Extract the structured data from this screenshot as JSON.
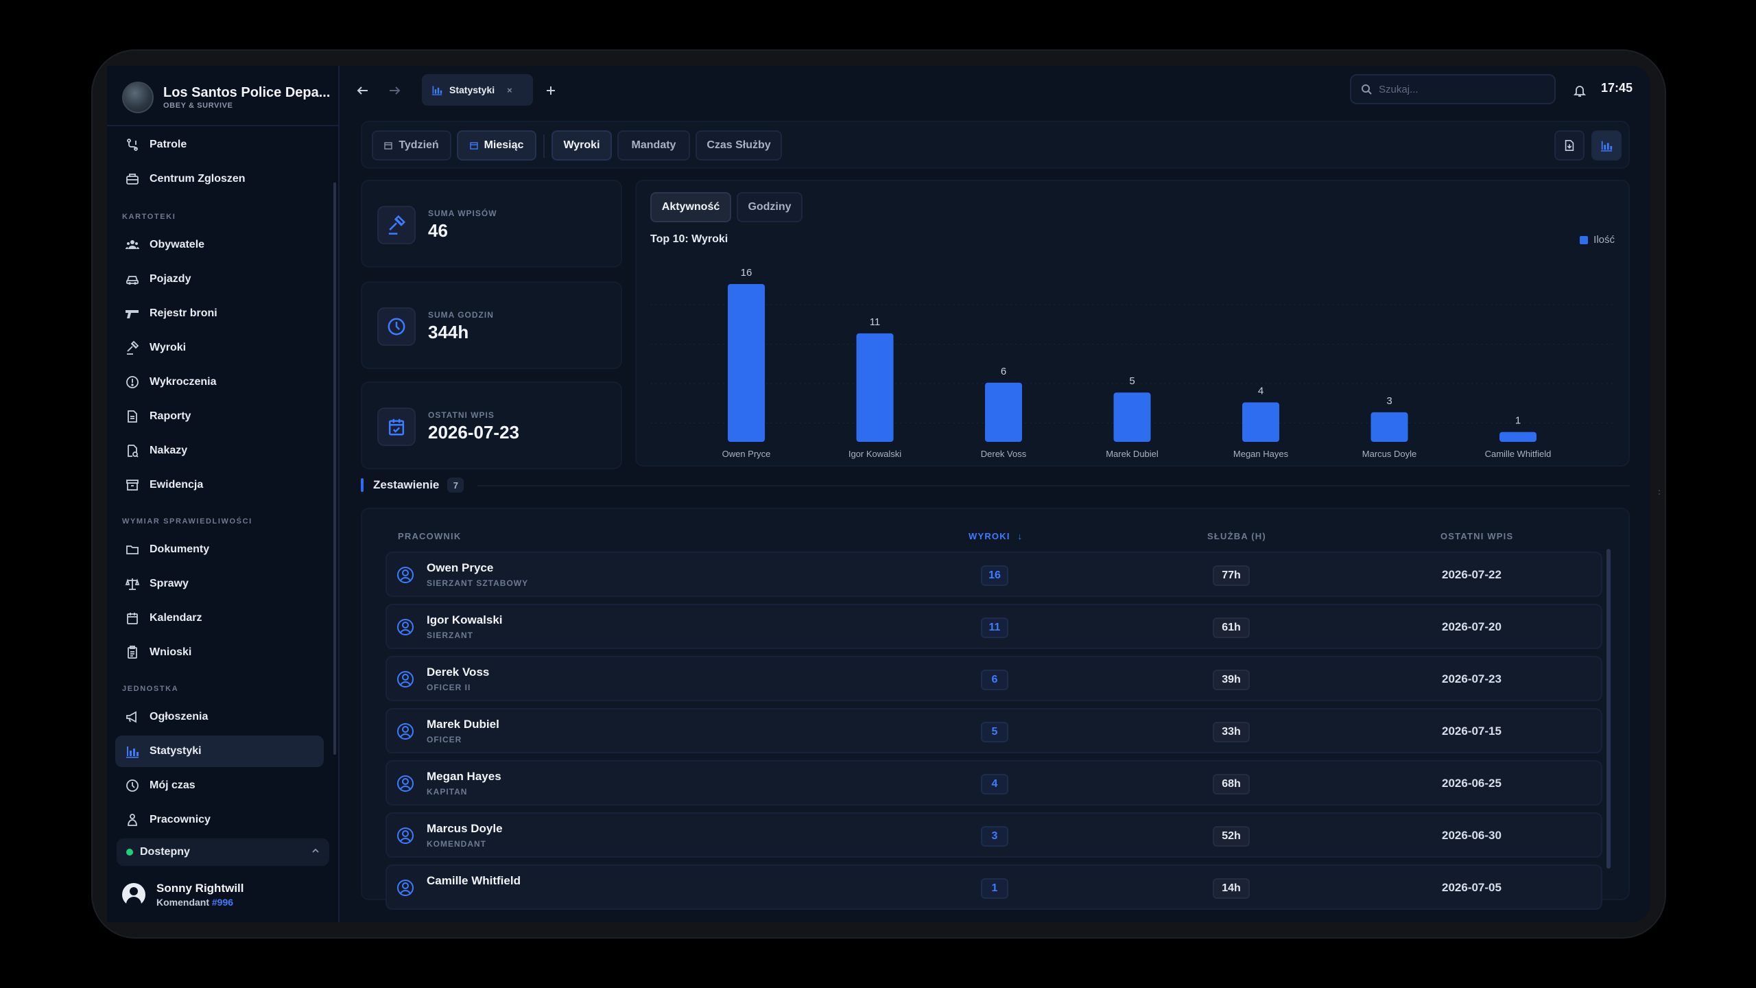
{
  "brand": {
    "title": "Los Santos Police Depa...",
    "subtitle": "OBEY & SURVIVE"
  },
  "sidebar": {
    "top_items": [
      {
        "label": "Patrole",
        "icon": "patrol-icon"
      },
      {
        "label": "Centrum Zgloszen",
        "icon": "dispatch-icon"
      }
    ],
    "sections": [
      {
        "title": "KARTOTEKI",
        "items": [
          {
            "label": "Obywatele",
            "icon": "citizens-icon"
          },
          {
            "label": "Pojazdy",
            "icon": "car-icon"
          },
          {
            "label": "Rejestr broni",
            "icon": "gun-icon"
          },
          {
            "label": "Wyroki",
            "icon": "gavel-icon"
          },
          {
            "label": "Wykroczenia",
            "icon": "alert-circle-icon"
          },
          {
            "label": "Raporty",
            "icon": "report-icon"
          },
          {
            "label": "Nakazy",
            "icon": "warrant-icon"
          },
          {
            "label": "Ewidencja",
            "icon": "archive-icon"
          }
        ]
      },
      {
        "title": "WYMIAR SPRAWIEDLIWOŚCI",
        "items": [
          {
            "label": "Dokumenty",
            "icon": "folder-icon"
          },
          {
            "label": "Sprawy",
            "icon": "scales-icon"
          },
          {
            "label": "Kalendarz",
            "icon": "calendar-icon"
          },
          {
            "label": "Wnioski",
            "icon": "clipboard-icon"
          }
        ]
      },
      {
        "title": "JEDNOSTKA",
        "items": [
          {
            "label": "Ogłoszenia",
            "icon": "megaphone-icon"
          },
          {
            "label": "Statystyki",
            "icon": "bar-chart-icon",
            "active": true
          },
          {
            "label": "Mój czas",
            "icon": "clock-icon"
          },
          {
            "label": "Pracownicy",
            "icon": "person-icon"
          }
        ]
      }
    ],
    "status": {
      "label": "Dostepny",
      "color": "#1fd17a"
    },
    "user": {
      "name": "Sonny Rightwill",
      "role": "Komendant",
      "badge": "#996"
    }
  },
  "topbar": {
    "tab_label": "Statystyki",
    "tab_close": "×",
    "search_placeholder": "Szukaj...",
    "clock": "17:45"
  },
  "filters": {
    "period": [
      {
        "label": "Tydzień",
        "active": false
      },
      {
        "label": "Miesiąc",
        "active": true
      }
    ],
    "category": [
      {
        "label": "Wyroki",
        "active": true
      },
      {
        "label": "Mandaty",
        "active": false
      },
      {
        "label": "Czas Służby",
        "active": false
      }
    ]
  },
  "stats": [
    {
      "label": "SUMA WPISÓW",
      "value": "46",
      "icon": "gavel-icon"
    },
    {
      "label": "SUMA GODZIN",
      "value": "344h",
      "icon": "clock-icon"
    },
    {
      "label": "OSTATNI WPIS",
      "value": "2026-07-23",
      "icon": "calendar-check-icon"
    }
  ],
  "chart_tabs": [
    {
      "label": "Aktywność",
      "active": true
    },
    {
      "label": "Godziny",
      "active": false
    }
  ],
  "chart_data": {
    "type": "bar",
    "title": "Top 10: Wyroki",
    "categories": [
      "Owen Pryce",
      "Igor Kowalski",
      "Derek Voss",
      "Marek Dubiel",
      "Megan Hayes",
      "Marcus Doyle",
      "Camille Whitfield"
    ],
    "series": [
      {
        "name": "Ilość",
        "values": [
          16,
          11,
          6,
          5,
          4,
          3,
          1
        ],
        "color": "#2f6df0"
      }
    ],
    "ylim": [
      0,
      16
    ],
    "grid": true,
    "legend": "top-right",
    "data_labels": true
  },
  "table": {
    "section_title": "Zestawienie",
    "count": "7",
    "headers": {
      "employee": "PRACOWNIK",
      "sentences": "WYROKI",
      "duty": "SŁUŻBA (H)",
      "last": "OSTATNI WPIS"
    },
    "sort_column": "sentences",
    "sort_indicator": "↓",
    "rows": [
      {
        "name": "Owen Pryce",
        "rank": "SIERZANT SZTABOWY",
        "sentences": "16",
        "duty": "77h",
        "last": "2026-07-22"
      },
      {
        "name": "Igor Kowalski",
        "rank": "SIERZANT",
        "sentences": "11",
        "duty": "61h",
        "last": "2026-07-20"
      },
      {
        "name": "Derek Voss",
        "rank": "OFICER II",
        "sentences": "6",
        "duty": "39h",
        "last": "2026-07-23"
      },
      {
        "name": "Marek Dubiel",
        "rank": "OFICER",
        "sentences": "5",
        "duty": "33h",
        "last": "2026-07-15"
      },
      {
        "name": "Megan Hayes",
        "rank": "KAPITAN",
        "sentences": "4",
        "duty": "68h",
        "last": "2026-06-25"
      },
      {
        "name": "Marcus Doyle",
        "rank": "KOMENDANT",
        "sentences": "3",
        "duty": "52h",
        "last": "2026-06-30"
      },
      {
        "name": "Camille Whitfield",
        "rank": "",
        "sentences": "1",
        "duty": "14h",
        "last": "2026-07-05"
      }
    ]
  },
  "colors": {
    "accent": "#2f6df0",
    "accent_text": "#3d7cff",
    "background": "#0b1220",
    "panel": "#0e1726"
  }
}
